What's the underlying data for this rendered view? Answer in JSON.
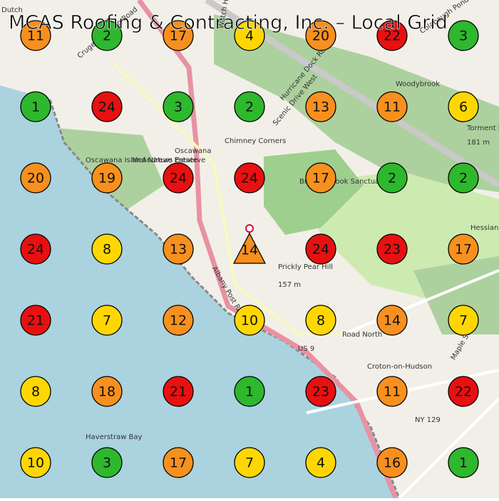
{
  "title": "MCAS Roofing & Contracting, Inc. – Local Grid",
  "grid": [
    [
      {
        "value": 11,
        "color": "#f7901e"
      },
      {
        "value": 2,
        "color": "#2db82d"
      },
      {
        "value": 17,
        "color": "#f7901e"
      },
      {
        "value": 4,
        "color": "#ffd700"
      },
      {
        "value": 20,
        "color": "#f7901e"
      },
      {
        "value": 22,
        "color": "#e81010"
      },
      {
        "value": 3,
        "color": "#2db82d"
      }
    ],
    [
      {
        "value": 1,
        "color": "#2db82d"
      },
      {
        "value": 24,
        "color": "#e81010"
      },
      {
        "value": 3,
        "color": "#2db82d"
      },
      {
        "value": 2,
        "color": "#2db82d"
      },
      {
        "value": 13,
        "color": "#f7901e"
      },
      {
        "value": 11,
        "color": "#f7901e"
      },
      {
        "value": 6,
        "color": "#ffd700"
      }
    ],
    [
      {
        "value": 20,
        "color": "#f7901e"
      },
      {
        "value": 19,
        "color": "#f7901e"
      },
      {
        "value": 24,
        "color": "#e81010"
      },
      {
        "value": 24,
        "color": "#e81010"
      },
      {
        "value": 17,
        "color": "#f7901e"
      },
      {
        "value": 2,
        "color": "#2db82d"
      },
      {
        "value": 2,
        "color": "#2db82d"
      }
    ],
    [
      {
        "value": 24,
        "color": "#e81010"
      },
      {
        "value": 8,
        "color": "#ffd700"
      },
      {
        "value": 13,
        "color": "#f7901e"
      },
      {
        "value": 14,
        "color": "#f7901e"
      },
      {
        "value": 24,
        "color": "#e81010"
      },
      {
        "value": 23,
        "color": "#e81010"
      },
      {
        "value": 17,
        "color": "#f7901e"
      }
    ],
    [
      {
        "value": 21,
        "color": "#e81010"
      },
      {
        "value": 7,
        "color": "#ffd700"
      },
      {
        "value": 12,
        "color": "#f7901e"
      },
      {
        "value": 10,
        "color": "#ffd700"
      },
      {
        "value": 8,
        "color": "#ffd700"
      },
      {
        "value": 14,
        "color": "#f7901e"
      },
      {
        "value": 7,
        "color": "#ffd700"
      }
    ],
    [
      {
        "value": 8,
        "color": "#ffd700"
      },
      {
        "value": 18,
        "color": "#f7901e"
      },
      {
        "value": 21,
        "color": "#e81010"
      },
      {
        "value": 1,
        "color": "#2db82d"
      },
      {
        "value": 23,
        "color": "#e81010"
      },
      {
        "value": 11,
        "color": "#f7901e"
      },
      {
        "value": 22,
        "color": "#e81010"
      }
    ],
    [
      {
        "value": 10,
        "color": "#ffd700"
      },
      {
        "value": 3,
        "color": "#2db82d"
      },
      {
        "value": 17,
        "color": "#f7901e"
      },
      {
        "value": 7,
        "color": "#ffd700"
      },
      {
        "value": 4,
        "color": "#ffd700"
      },
      {
        "value": 16,
        "color": "#f7901e"
      },
      {
        "value": 1,
        "color": "#2db82d"
      }
    ]
  ],
  "map_labels": [
    "Dutch",
    "Crugers Station Road",
    "Watch Hill",
    "Colabaugh Pond Road",
    "Woodybrook",
    "Hurricane Dock Road",
    "Scenic Drive West",
    "Chimney Corners",
    "Oscawana Island Nature Preserve",
    "McAndrews Estate",
    "Oscawana",
    "Brinton Brook Sanctuary",
    "Torment Hill",
    "181 m",
    "Hessian Hill",
    "Prickly Pear Hill",
    "157 m",
    "Albany Post Road",
    "US 9",
    "Croton-on-Hudson",
    "NY 129",
    "Haverstraw Bay",
    "Maple Street",
    "Road North"
  ]
}
